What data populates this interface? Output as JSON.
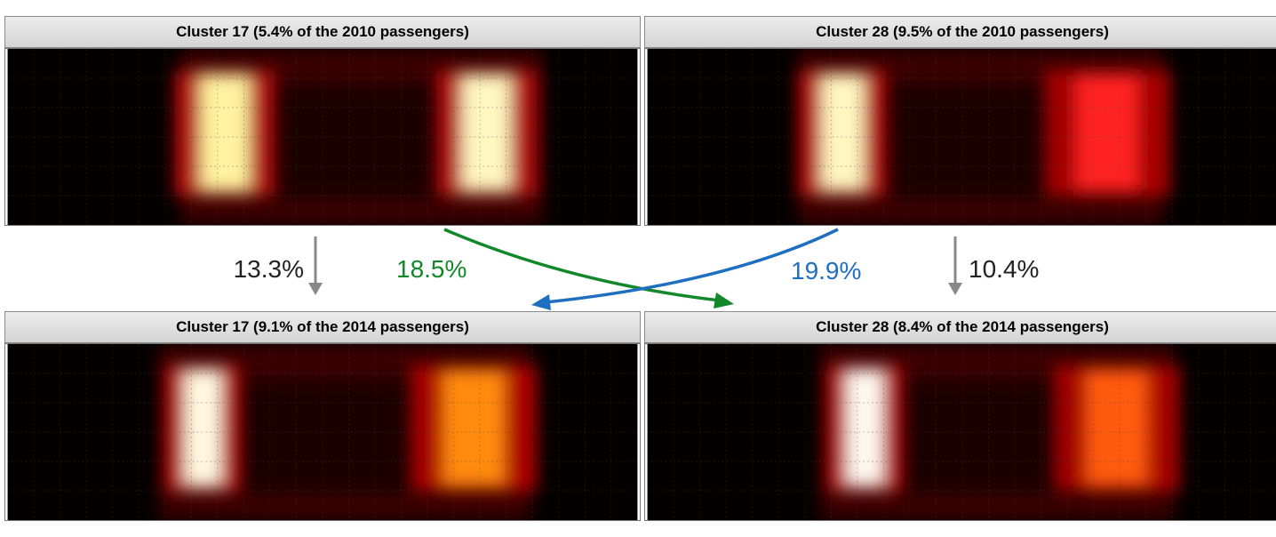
{
  "panels": [
    {
      "title": "Cluster 17 (5.4% of the 2010 passengers)",
      "hotspots": [
        {
          "center": 0.345,
          "width": 0.08,
          "color": "#fff2a0",
          "intensity": 1.0
        },
        {
          "center": 0.76,
          "width": 0.08,
          "color": "#fff6c0",
          "intensity": 1.0
        }
      ]
    },
    {
      "title": "Cluster 28 (9.5% of the 2010 passengers)",
      "hotspots": [
        {
          "center": 0.31,
          "width": 0.07,
          "color": "#fff6c0",
          "intensity": 1.0
        },
        {
          "center": 0.73,
          "width": 0.1,
          "color": "#ff2020",
          "intensity": 0.9
        }
      ]
    },
    {
      "title": "Cluster 17 (9.1% of the 2014 passengers)",
      "hotspots": [
        {
          "center": 0.31,
          "width": 0.06,
          "color": "#fff8e0",
          "intensity": 1.0
        },
        {
          "center": 0.74,
          "width": 0.1,
          "color": "#ff8a10",
          "intensity": 0.95
        }
      ]
    },
    {
      "title": "Cluster 28 (8.4% of the 2014 passengers)",
      "hotspots": [
        {
          "center": 0.345,
          "width": 0.06,
          "color": "#fff8f0",
          "intensity": 1.0
        },
        {
          "center": 0.745,
          "width": 0.1,
          "color": "#ff5a10",
          "intensity": 0.9
        }
      ]
    }
  ],
  "transitions": {
    "c17_stay": {
      "label": "13.3%",
      "color": "#888888"
    },
    "c17_to_c28": {
      "label": "18.5%",
      "color": "#13882a"
    },
    "c28_to_c17": {
      "label": "19.9%",
      "color": "#1f6fc0"
    },
    "c28_stay": {
      "label": "10.4%",
      "color": "#888888"
    }
  },
  "colors": {
    "label_dark": "#222222"
  }
}
